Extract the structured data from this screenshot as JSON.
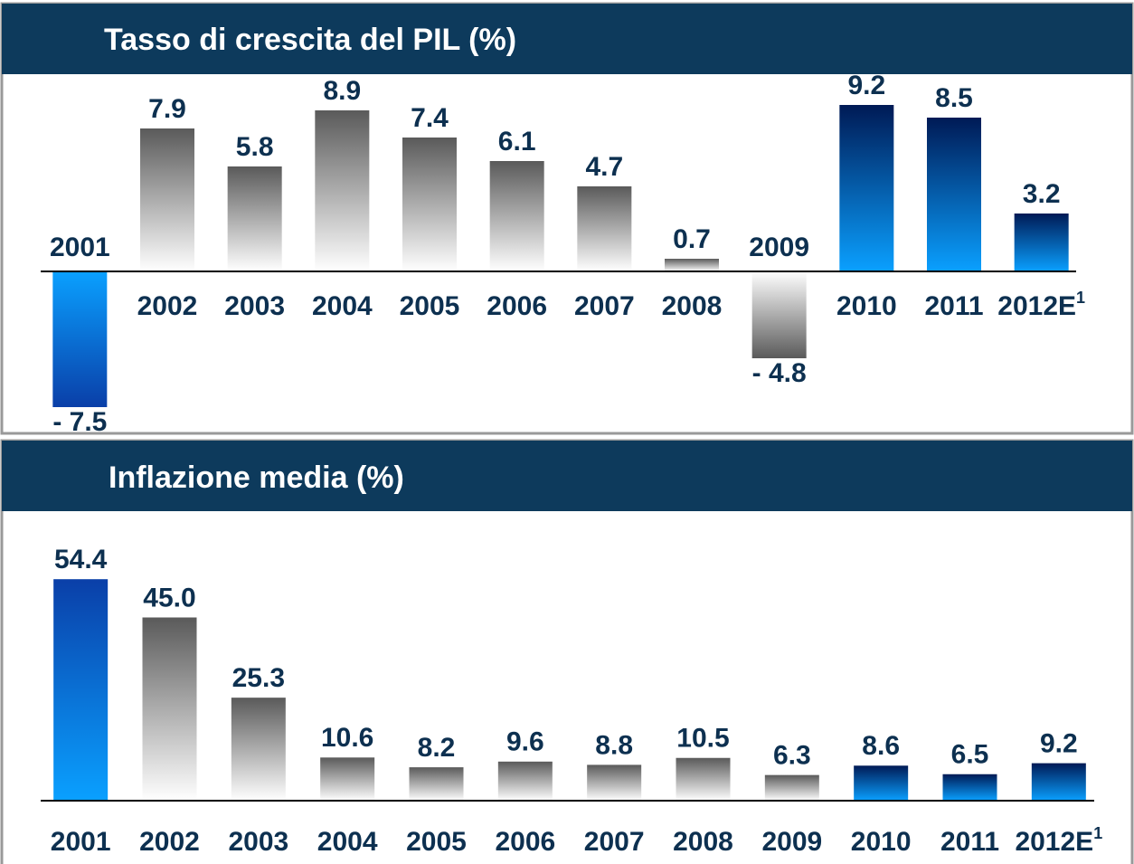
{
  "chart_data": [
    {
      "type": "bar",
      "title": "Tasso di crescita del PIL (%)",
      "categories": [
        "2001",
        "2002",
        "2003",
        "2004",
        "2005",
        "2006",
        "2007",
        "2008",
        "2009",
        "2010",
        "2011",
        "2012E"
      ],
      "category_footnote": "1",
      "values": [
        -7.5,
        7.9,
        5.8,
        8.9,
        7.4,
        6.1,
        4.7,
        0.7,
        -4.8,
        9.2,
        8.5,
        3.2
      ],
      "value_labels": [
        "- 7.5",
        "7.9",
        "5.8",
        "8.9",
        "7.4",
        "6.1",
        "4.7",
        "0.7",
        "- 4.8",
        "9.2",
        "8.5",
        "3.2"
      ],
      "colors": [
        "#0a3fa8",
        "#5a5a5a",
        "#5a5a5a",
        "#5a5a5a",
        "#5a5a5a",
        "#5a5a5a",
        "#5a5a5a",
        "#5a5a5a",
        "#5a5a5a",
        "#001a55",
        "#001a55",
        "#001a55"
      ],
      "ylim": [
        -8.5,
        10
      ]
    },
    {
      "type": "bar",
      "title": "Inflazione media (%)",
      "categories": [
        "2001",
        "2002",
        "2003",
        "2004",
        "2005",
        "2006",
        "2007",
        "2008",
        "2009",
        "2010",
        "2011",
        "2012E"
      ],
      "category_footnote": "1",
      "values": [
        54.4,
        45.0,
        25.3,
        10.6,
        8.2,
        9.6,
        8.8,
        10.5,
        6.3,
        8.6,
        6.5,
        9.2
      ],
      "value_labels": [
        "54.4",
        "45.0",
        "25.3",
        "10.6",
        "8.2",
        "9.6",
        "8.8",
        "10.5",
        "6.3",
        "8.6",
        "6.5",
        "9.2"
      ],
      "colors": [
        "#0a3fa8",
        "#5a5a5a",
        "#5a5a5a",
        "#5a5a5a",
        "#5a5a5a",
        "#5a5a5a",
        "#5a5a5a",
        "#5a5a5a",
        "#5a5a5a",
        "#001a55",
        "#001a55",
        "#001a55"
      ],
      "ylim": [
        0,
        60
      ]
    }
  ]
}
